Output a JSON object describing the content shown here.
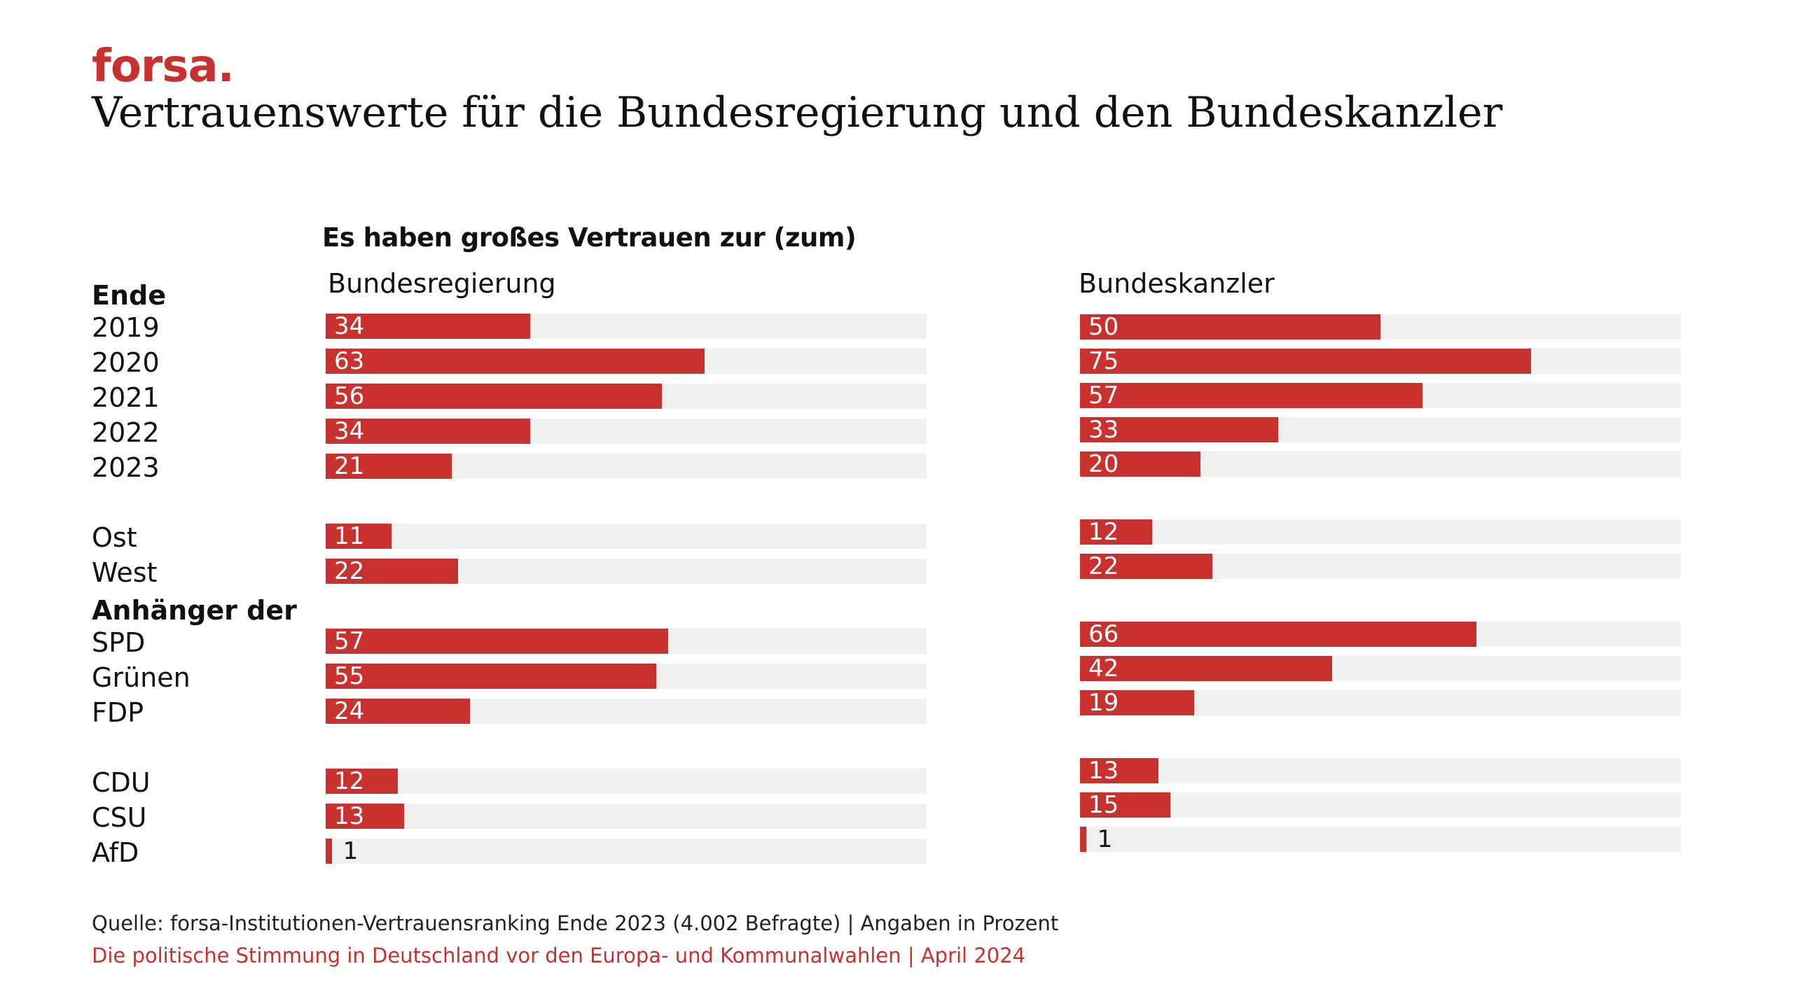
{
  "logo": "forsa.",
  "title": "Vertrauenswerte für die Bundesregierung und den Bundeskanzler",
  "chart_data": {
    "type": "bar",
    "subtitle": "Es haben großes Vertrauen zur (zum)",
    "xlim": [
      0,
      100
    ],
    "groups": [
      {
        "label": "Ende",
        "categories": [
          "2019",
          "2020",
          "2021",
          "2022",
          "2023"
        ]
      },
      {
        "label": "",
        "categories": [
          "Ost",
          "West"
        ]
      },
      {
        "label": "Anhänger der",
        "categories": [
          "SPD",
          "Grünen",
          "FDP"
        ]
      },
      {
        "label": "",
        "categories": [
          "CDU",
          "CSU",
          "AfD"
        ]
      }
    ],
    "categories": [
      "2019",
      "2020",
      "2021",
      "2022",
      "2023",
      "Ost",
      "West",
      "SPD",
      "Grünen",
      "FDP",
      "CDU",
      "CSU",
      "AfD"
    ],
    "series": [
      {
        "name": "Bundesregierung",
        "values": [
          34,
          63,
          56,
          34,
          21,
          11,
          22,
          57,
          55,
          24,
          12,
          13,
          1
        ]
      },
      {
        "name": "Bundeskanzler",
        "values": [
          50,
          75,
          57,
          33,
          20,
          12,
          22,
          66,
          42,
          19,
          13,
          15,
          1
        ]
      }
    ]
  },
  "source": "Quelle: forsa-Institutionen-Vertrauensranking Ende 2023 (4.002 Befragte) | Angaben in Prozent",
  "footer": "Die politische Stimmung in Deutschland vor den Europa- und Kommunalwahlen | April 2024",
  "colors": {
    "accent": "#c8312e",
    "track": "#efefef"
  }
}
